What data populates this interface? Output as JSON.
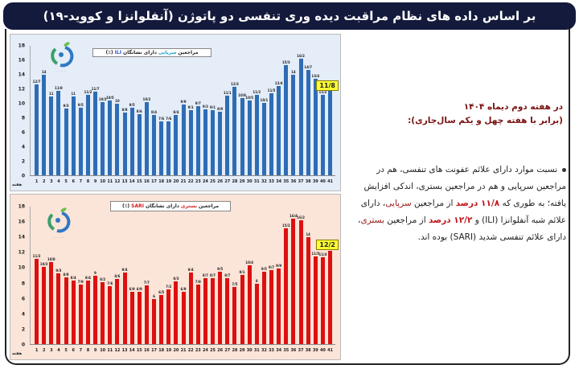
{
  "header": {
    "title": "بر اساس داده های نظام مراقبت دیده وری تنفسی دو پاتوژن (آنفلوانزا و کووید-۱۹)"
  },
  "colors": {
    "header_bg": "#141a3c",
    "ili_bar": "#2e6db5",
    "sari_bar": "#dd1010",
    "ili_bg": "#e4edf8",
    "sari_bg": "#fbe4d8",
    "callout": "#ffff33",
    "heading_text": "#7a1010"
  },
  "side": {
    "heading_line1": "در هفته دوم دیماه ۱۴۰۴",
    "heading_line2": "(برابر با هفته چهل و یکم سال‌جاری):",
    "body_part1": "نسبت موارد دارای علائم عفونت های تنفسی، هم در مراجعین سرپایی و هم در مراجعین بستری، اندکی افزایش یافته؛ به طوری که ",
    "body_ili_pct": "۱۱/۸ درصد",
    "body_part2": " از مراجعین ",
    "body_outpatient": "سرپایی",
    "body_part3": "، دارای علائم شبه آنفلوانزا (ILI) و ",
    "body_sari_pct": "۱۲/۲ درصد",
    "body_part4": " از مراجعین ",
    "body_inpatient": "بستری",
    "body_part5": "، دارای علائم تنفسی شدید (SARI) بوده اند."
  },
  "chart_data": [
    {
      "type": "bar",
      "title": "مراجعین سرپایی دارای نشانگان ILI (٪)",
      "title_parts": {
        "pre": "مراجعین",
        "hl": "سرپایی",
        "mid": "دارای نشانگان",
        "tag": "ILI",
        "post": "(٪)"
      },
      "xlabel": "هفته",
      "ylabel": "",
      "ylim": [
        0,
        18
      ],
      "yticks": [
        0,
        2,
        4,
        6,
        8,
        10,
        12,
        14,
        16,
        18
      ],
      "grid": false,
      "legend": "none",
      "categories": [
        "1",
        "2",
        "3",
        "4",
        "5",
        "6",
        "7",
        "8",
        "9",
        "10",
        "11",
        "12",
        "13",
        "14",
        "15",
        "16",
        "17",
        "18",
        "19",
        "20",
        "21",
        "22",
        "23",
        "24",
        "25",
        "26",
        "27",
        "28",
        "29",
        "30",
        "31",
        "32",
        "33",
        "34",
        "35",
        "36",
        "37",
        "38",
        "39",
        "40",
        "41"
      ],
      "values": [
        12.7,
        14,
        11,
        11.8,
        9.3,
        11,
        9.5,
        11.2,
        11.7,
        10.2,
        10.5,
        10,
        8.8,
        9.5,
        8.6,
        10.2,
        8.4,
        7.6,
        7.6,
        8.4,
        9.9,
        9.1,
        9.7,
        9.2,
        9.1,
        8.9,
        11.1,
        12.3,
        10.8,
        10.5,
        11.2,
        10.1,
        11.5,
        12.4,
        15.3,
        14,
        16.2,
        14.7,
        13.4,
        11.2,
        11.8
      ],
      "labels": [
        "12/7",
        "14",
        "11",
        "11/8",
        "9/3",
        "11",
        "9/5",
        "11/2",
        "11/7",
        "10/2",
        "10/5",
        "10",
        "8/8",
        "9/5",
        "8/6",
        "10/2",
        "8/4",
        "7/6",
        "7/6",
        "8/4",
        "9/9",
        "9/1",
        "9/7",
        "9/2",
        "9/1",
        "8/9",
        "11/1",
        "12/3",
        "10/8",
        "10/5",
        "11/2",
        "10/1",
        "11/5",
        "12/4",
        "15/3",
        "14",
        "16/2",
        "14/7",
        "13/4",
        "11/2",
        ""
      ],
      "callout": "11/8"
    },
    {
      "type": "bar",
      "title": "مراجعین بستری دارای نشانگان SARI (٪)",
      "title_parts": {
        "pre": "مراجعین",
        "hl": "بستری",
        "mid": "دارای نشانگان",
        "tag": "SARI",
        "post": "(٪)"
      },
      "xlabel": "هفته",
      "ylabel": "",
      "ylim": [
        0,
        18
      ],
      "yticks": [
        0,
        2,
        4,
        6,
        8,
        10,
        12,
        14,
        16,
        18
      ],
      "grid": false,
      "legend": "none",
      "categories": [
        "1",
        "2",
        "3",
        "4",
        "5",
        "6",
        "7",
        "8",
        "9",
        "10",
        "11",
        "12",
        "13",
        "14",
        "15",
        "16",
        "17",
        "18",
        "19",
        "20",
        "21",
        "22",
        "23",
        "24",
        "25",
        "26",
        "27",
        "28",
        "29",
        "30",
        "31",
        "32",
        "33",
        "34",
        "35",
        "36",
        "37",
        "38",
        "39",
        "40",
        "41"
      ],
      "values": [
        11.2,
        10.2,
        10.8,
        9.3,
        8.8,
        8.4,
        7.9,
        8.4,
        9,
        8.2,
        7.6,
        8.6,
        9.4,
        6.9,
        6.9,
        7.7,
        6,
        6.5,
        7.2,
        8.3,
        6.9,
        9.4,
        7.8,
        8.7,
        8.7,
        9.5,
        8.7,
        7.5,
        9.1,
        10.4,
        8,
        9.5,
        9.7,
        9.9,
        15.2,
        16.4,
        16.2,
        14,
        11.5,
        11.4,
        12.2
      ],
      "labels": [
        "11/2",
        "10/2",
        "10/8",
        "9/3",
        "8/8",
        "8/4",
        "7/9",
        "8/4",
        "9",
        "8/2",
        "7/6",
        "8/6",
        "9/4",
        "6/9",
        "6/9",
        "7/7",
        "6",
        "6/5",
        "7/2",
        "8/3",
        "6/9",
        "9/4",
        "7/8",
        "8/7",
        "8/7",
        "9/5",
        "8/7",
        "7/5",
        "9/1",
        "10/4",
        "8",
        "9/5",
        "9/7",
        "9/9",
        "15/2",
        "16/4",
        "16/2",
        "14",
        "11/5",
        "11/4",
        ""
      ],
      "callout": "12/2"
    }
  ]
}
